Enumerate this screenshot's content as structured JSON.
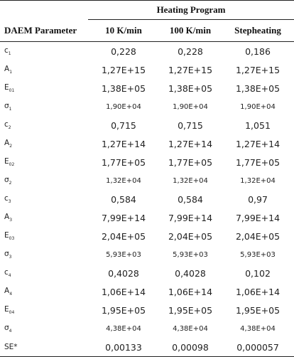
{
  "table": {
    "group_header": "Heating Program",
    "columns": [
      "DAEM Parameter",
      "10 K/min",
      "100 K/min",
      "Stepheating"
    ],
    "rows": [
      {
        "base": "c",
        "sub": "1",
        "values": [
          "0,228",
          "0,228",
          "0,186"
        ],
        "small": false
      },
      {
        "base": "A",
        "sub": "1",
        "values": [
          "1,27E+15",
          "1,27E+15",
          "1,27E+15"
        ],
        "small": false
      },
      {
        "base": "E",
        "sub": "01",
        "values": [
          "1,38E+05",
          "1,38E+05",
          "1,38E+05"
        ],
        "small": false
      },
      {
        "base": "σ",
        "sub": "1",
        "values": [
          "1,90E+04",
          "1,90E+04",
          "1,90E+04"
        ],
        "small": true
      },
      {
        "base": "c",
        "sub": "2",
        "values": [
          "0,715",
          "0,715",
          "1,051"
        ],
        "small": false
      },
      {
        "base": "A",
        "sub": "2",
        "values": [
          "1,27E+14",
          "1,27E+14",
          "1,27E+14"
        ],
        "small": false
      },
      {
        "base": "E",
        "sub": "02",
        "values": [
          "1,77E+05",
          "1,77E+05",
          "1,77E+05"
        ],
        "small": false
      },
      {
        "base": "σ",
        "sub": "2",
        "values": [
          "1,32E+04",
          "1,32E+04",
          "1,32E+04"
        ],
        "small": true
      },
      {
        "base": "c",
        "sub": "3",
        "values": [
          "0,584",
          "0,584",
          "0,97"
        ],
        "small": false
      },
      {
        "base": "A",
        "sub": "3",
        "values": [
          "7,99E+14",
          "7,99E+14",
          "7,99E+14"
        ],
        "small": false
      },
      {
        "base": "E",
        "sub": "03",
        "values": [
          "2,04E+05",
          "2,04E+05",
          "2,04E+05"
        ],
        "small": false
      },
      {
        "base": "σ",
        "sub": "3",
        "values": [
          "5,93E+03",
          "5,93E+03",
          "5,93E+03"
        ],
        "small": true
      },
      {
        "base": "c",
        "sub": "4",
        "values": [
          "0,4028",
          "0,4028",
          "0,102"
        ],
        "small": false
      },
      {
        "base": "A",
        "sub": "4",
        "values": [
          "1,06E+14",
          "1,06E+14",
          "1,06E+14"
        ],
        "small": false
      },
      {
        "base": "E",
        "sub": "04",
        "values": [
          "1,95E+05",
          "1,95E+05",
          "1,95E+05"
        ],
        "small": false
      },
      {
        "base": "σ",
        "sub": "4",
        "values": [
          "4,38E+04",
          "4,38E+04",
          "4,38E+04"
        ],
        "small": true
      },
      {
        "base": "SE*",
        "sub": "",
        "values": [
          "0,00133",
          "0,00098",
          "0,000057"
        ],
        "small": false
      }
    ]
  }
}
